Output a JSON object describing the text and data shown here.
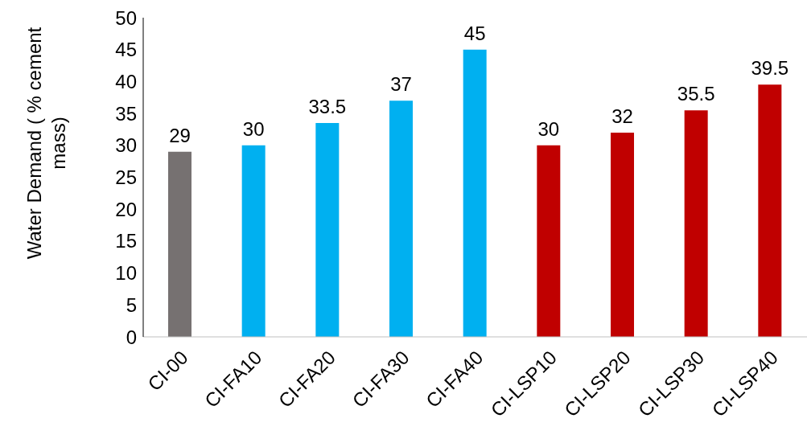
{
  "chart_data": {
    "type": "bar",
    "ylabel": "Water Demand ( % cement mass)",
    "categories": [
      "CI-00",
      "CI-FA10",
      "CI-FA20",
      "CI-FA30",
      "CI-FA40",
      "CI-LSP10",
      "CI-LSP20",
      "CI-LSP30",
      "CI-LSP40"
    ],
    "values": [
      29,
      30,
      33.5,
      37,
      45,
      30,
      32,
      35.5,
      39.5
    ],
    "colors": [
      "#767171",
      "#00b0f0",
      "#00b0f0",
      "#00b0f0",
      "#00b0f0",
      "#c00000",
      "#c00000",
      "#c00000",
      "#c00000"
    ],
    "ylim": [
      0,
      50
    ],
    "yticks": [
      0,
      5,
      10,
      15,
      20,
      25,
      30,
      35,
      40,
      45,
      50
    ],
    "grid": false,
    "legend": false,
    "data_labels": true
  }
}
